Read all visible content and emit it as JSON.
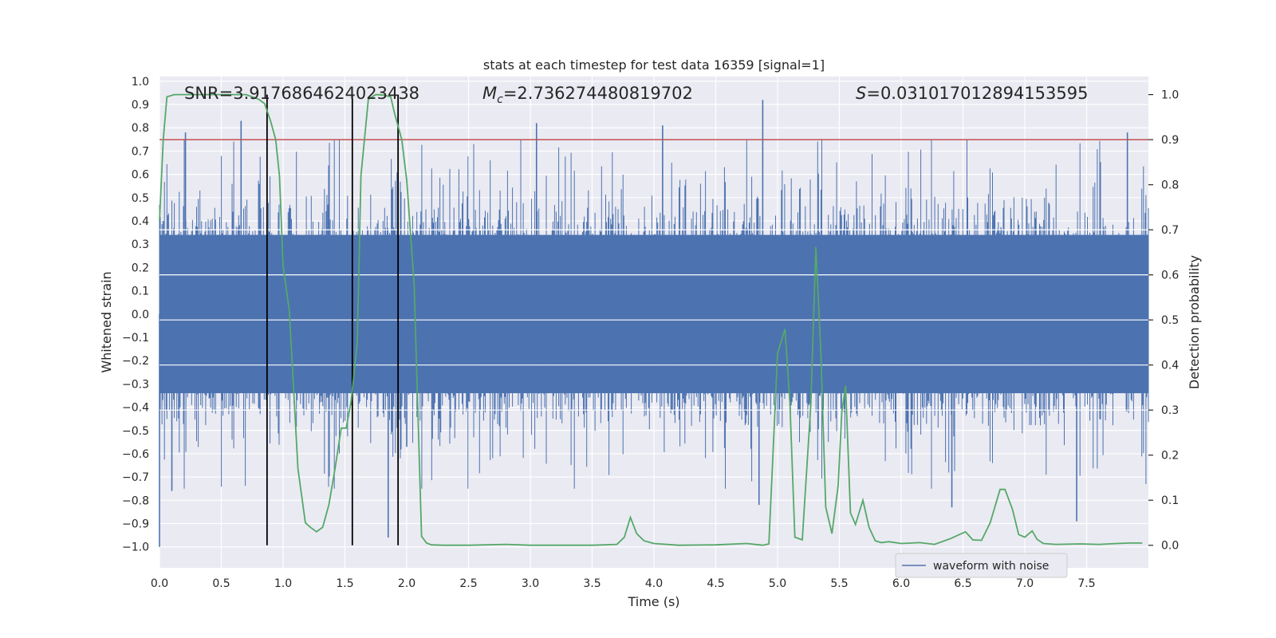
{
  "chart_data": {
    "type": "line",
    "title": "stats at each timestep for test data 16359 [signal=1]",
    "xlabel": "Time (s)",
    "ylabel_left": "Whitened strain",
    "ylabel_right": "Detection probability",
    "xlim": [
      0,
      8
    ],
    "ylim_left": [
      -1.09,
      1.02
    ],
    "ylim_right": [
      -0.05,
      1.04
    ],
    "x_ticks": [
      "0.0",
      "0.5",
      "1.0",
      "1.5",
      "2.0",
      "2.5",
      "3.0",
      "3.5",
      "4.0",
      "4.5",
      "5.0",
      "5.5",
      "6.0",
      "6.5",
      "7.0",
      "7.5"
    ],
    "y_left_ticks": [
      "1.0",
      "0.9",
      "0.8",
      "0.7",
      "0.6",
      "0.5",
      "0.4",
      "0.3",
      "0.2",
      "0.1",
      "0.0",
      "-0.1",
      "-0.2",
      "-0.3",
      "-0.4",
      "-0.5",
      "-0.6",
      "-0.7",
      "-0.8",
      "-0.9",
      "-1.0"
    ],
    "y_right_ticks": [
      "1.0",
      "0.9",
      "0.8",
      "0.7",
      "0.6",
      "0.5",
      "0.4",
      "0.3",
      "0.2",
      "0.1",
      "0.0"
    ],
    "grid": true,
    "annotations": {
      "snr": "SNR=3.9176864624023438",
      "mc_sym": "M",
      "mc_sub": "c",
      "mc_val": "=2.736274480819702",
      "s_sym": "S",
      "s_val": "=0.031017012894153595"
    },
    "threshold": {
      "value": 0.9,
      "axis": "right",
      "color": "#c44e52"
    },
    "vertical_lines": [
      0.87,
      1.56,
      1.93
    ],
    "waveform": {
      "name": "waveform with noise",
      "color": "#4c72b0",
      "n_samples": 1200,
      "core_amplitude": 0.34,
      "peaks": [
        {
          "x": 0.0,
          "y": -1.0
        },
        {
          "x": 0.1,
          "y": -0.76
        },
        {
          "x": 0.21,
          "y": 0.78
        },
        {
          "x": 0.66,
          "y": 0.83
        },
        {
          "x": 1.85,
          "y": -0.96
        },
        {
          "x": 3.05,
          "y": 0.82
        },
        {
          "x": 4.07,
          "y": 0.81
        },
        {
          "x": 4.88,
          "y": 0.92
        },
        {
          "x": 4.85,
          "y": -0.82
        },
        {
          "x": 6.41,
          "y": -0.83
        },
        {
          "x": 7.42,
          "y": -0.89
        },
        {
          "x": 7.83,
          "y": 0.78
        },
        {
          "x": 2.0,
          "y": -0.57
        },
        {
          "x": 0.03,
          "y": 0.4
        }
      ]
    },
    "series": [
      {
        "name": "Detection probability",
        "axis": "right",
        "color": "#55a868",
        "x": [
          0.0,
          0.03,
          0.06,
          0.12,
          0.5,
          0.7,
          0.8,
          0.85,
          0.9,
          0.94,
          0.97,
          1.0,
          1.05,
          1.12,
          1.18,
          1.22,
          1.27,
          1.32,
          1.37,
          1.42,
          1.47,
          1.51,
          1.55,
          1.6,
          1.63,
          1.69,
          1.75,
          1.81,
          1.87,
          1.9,
          1.96,
          2.0,
          2.06,
          2.12,
          2.16,
          2.2,
          2.3,
          2.5,
          2.8,
          3.0,
          3.2,
          3.5,
          3.7,
          3.76,
          3.81,
          3.86,
          3.92,
          4.0,
          4.2,
          4.5,
          4.75,
          4.88,
          4.93,
          5.0,
          5.06,
          5.1,
          5.14,
          5.2,
          5.27,
          5.31,
          5.35,
          5.39,
          5.44,
          5.49,
          5.52,
          5.55,
          5.59,
          5.63,
          5.69,
          5.74,
          5.79,
          5.84,
          5.9,
          6.0,
          6.15,
          6.27,
          6.4,
          6.52,
          6.58,
          6.65,
          6.72,
          6.8,
          6.84,
          6.9,
          6.95,
          7.0,
          7.06,
          7.1,
          7.15,
          7.25,
          7.45,
          7.6,
          7.75,
          7.85,
          7.95
        ],
        "y": [
          0.72,
          0.9,
          0.995,
          1.0,
          1.0,
          1.0,
          0.99,
          0.98,
          0.94,
          0.9,
          0.82,
          0.62,
          0.52,
          0.17,
          0.05,
          0.04,
          0.03,
          0.04,
          0.09,
          0.17,
          0.26,
          0.26,
          0.32,
          0.45,
          0.82,
          0.99,
          1.0,
          0.999,
          0.995,
          0.96,
          0.9,
          0.81,
          0.58,
          0.02,
          0.005,
          0.001,
          0.0,
          0.0,
          0.002,
          0.0,
          0.0,
          0.0,
          0.002,
          0.018,
          0.062,
          0.026,
          0.01,
          0.004,
          0.0,
          0.001,
          0.004,
          0.0,
          0.003,
          0.426,
          0.48,
          0.315,
          0.018,
          0.012,
          0.315,
          0.662,
          0.427,
          0.085,
          0.026,
          0.133,
          0.297,
          0.354,
          0.072,
          0.046,
          0.1,
          0.04,
          0.01,
          0.006,
          0.008,
          0.004,
          0.006,
          0.002,
          0.015,
          0.03,
          0.012,
          0.011,
          0.05,
          0.124,
          0.124,
          0.08,
          0.024,
          0.018,
          0.032,
          0.013,
          0.004,
          0.002,
          0.003,
          0.002,
          0.004,
          0.005,
          0.005
        ]
      }
    ],
    "legend": {
      "label": "waveform with noise",
      "position": "lower-right"
    }
  }
}
